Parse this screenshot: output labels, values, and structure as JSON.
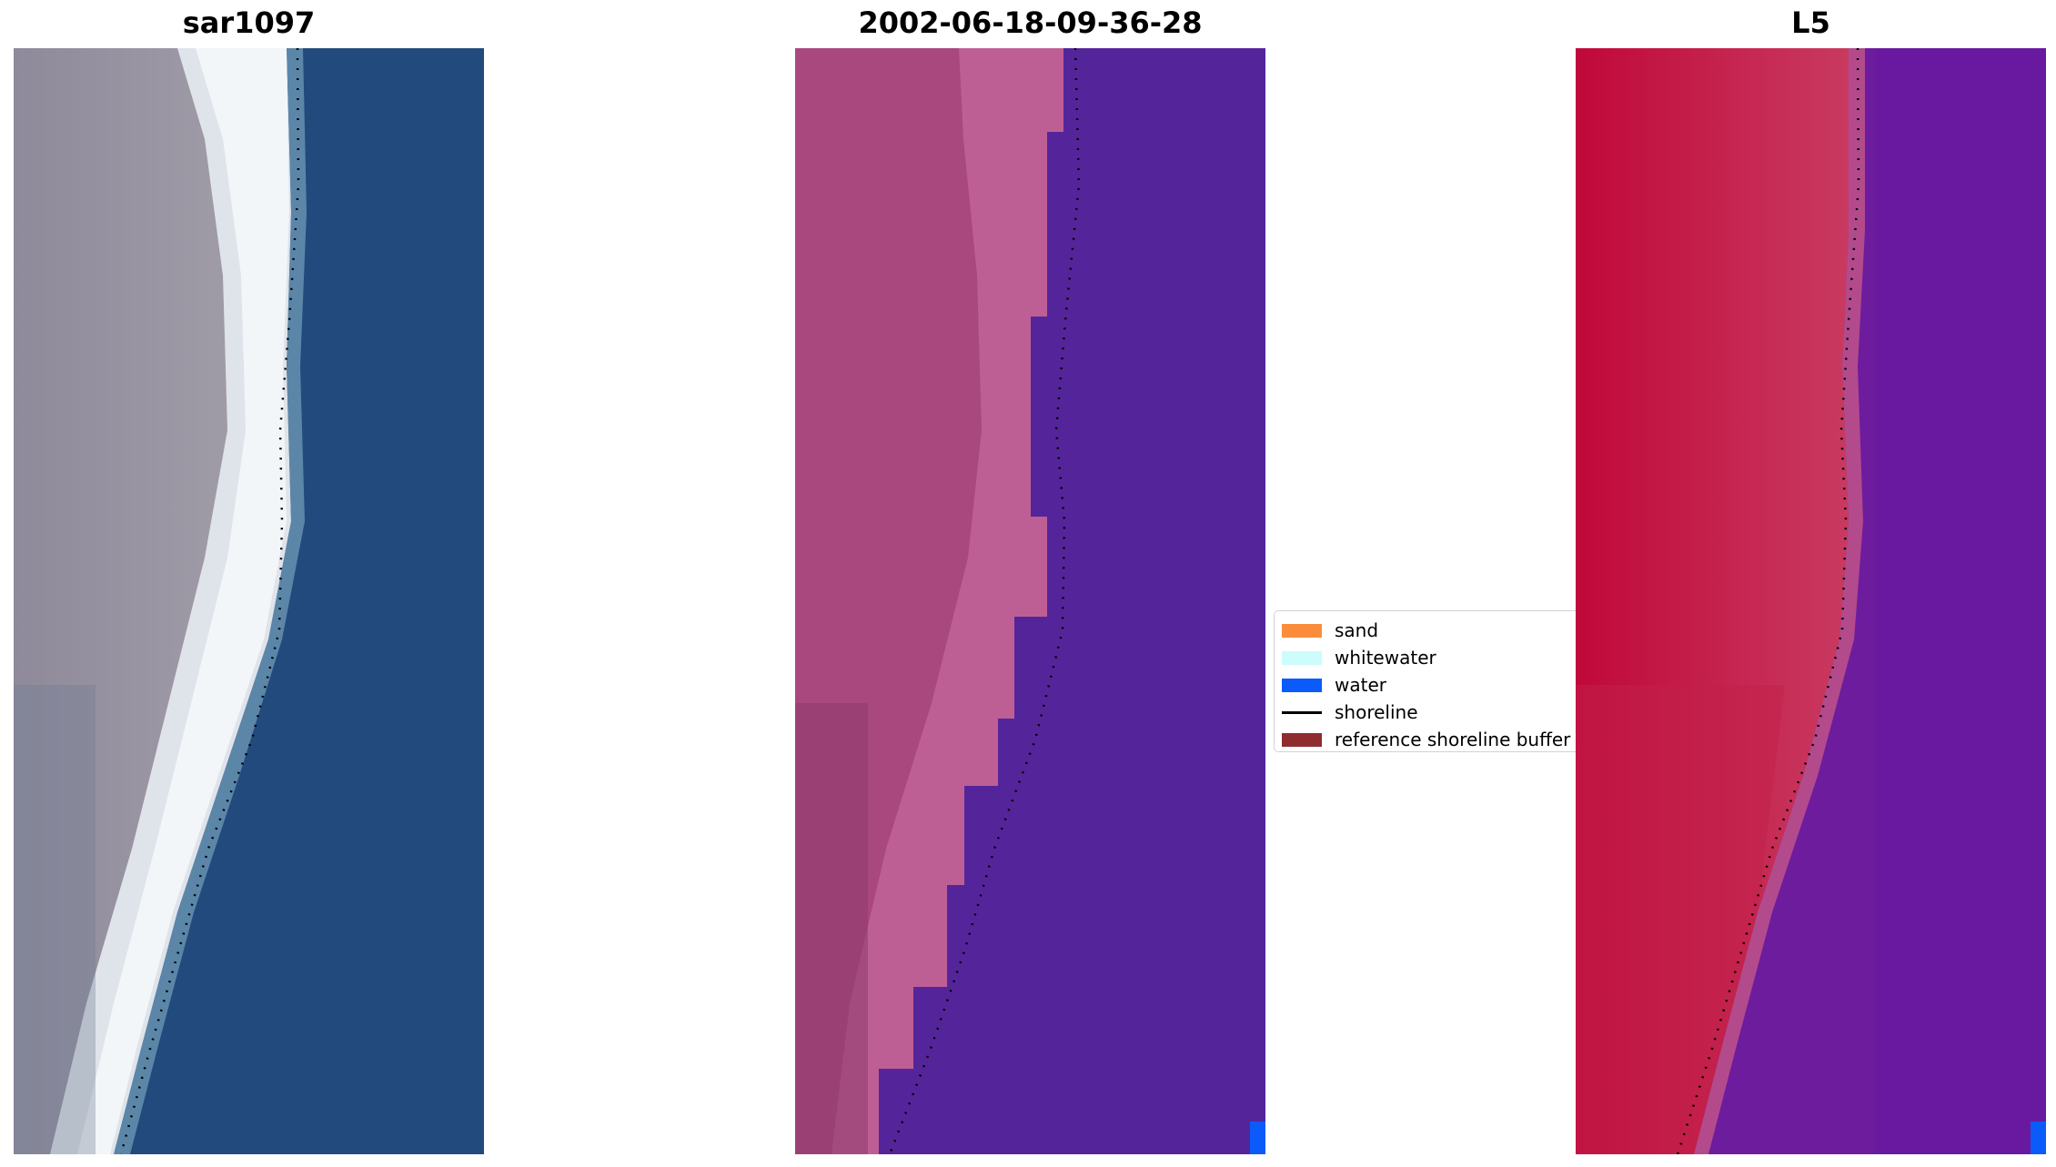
{
  "panels": [
    {
      "title": "sar1097"
    },
    {
      "title": "2002-06-18-09-36-28"
    },
    {
      "title": "L5"
    }
  ],
  "legend": {
    "items": [
      {
        "label": "sand",
        "color": "#fb8c3c",
        "kind": "patch"
      },
      {
        "label": "whitewater",
        "color": "#ccfcfc",
        "kind": "patch"
      },
      {
        "label": "water",
        "color": "#0a5bfa",
        "kind": "patch"
      },
      {
        "label": "shoreline",
        "color": "#000000",
        "kind": "line"
      },
      {
        "label": "reference shoreline buffer",
        "color": "#8f2c30",
        "kind": "patch"
      }
    ]
  },
  "colors": {
    "rgb_water": "#244a7e",
    "rgb_sand": "#9a8f9c",
    "class_land": "#a9477f",
    "class_water": "#54259a",
    "mndwi_land": "#c2123a",
    "mndwi_water": "#6b1a9e"
  }
}
